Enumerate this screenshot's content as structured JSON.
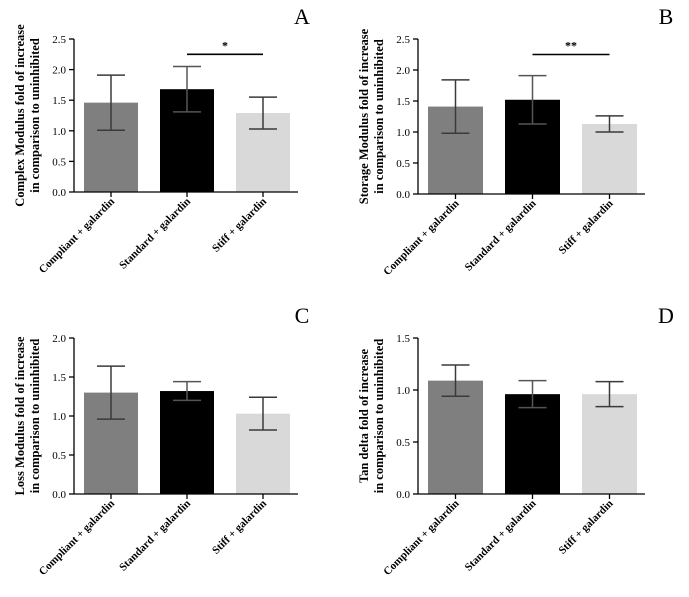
{
  "chart_data": [
    {
      "panel": "A",
      "type": "bar",
      "categories": [
        "Compliant + galardin",
        "Standard + galardin",
        "Stiff + galardin"
      ],
      "values": [
        1.46,
        1.68,
        1.29
      ],
      "errors": [
        0.45,
        0.37,
        0.26
      ],
      "colors": [
        "#7f7f7f",
        "#000000",
        "#d9d9d9"
      ],
      "ylabel_lines": [
        "Complex Modulus fold of increase",
        "in comparison to  uninhibited"
      ],
      "ylim": [
        0,
        2.5
      ],
      "yticks": [
        0,
        0.5,
        1.0,
        1.5,
        2.0,
        2.5
      ],
      "ytick_labels": [
        "0.0",
        "0.5",
        "1.0",
        "1.5",
        "2.0",
        "2.5"
      ],
      "significance": [
        {
          "from": 1,
          "to": 2,
          "label": "*",
          "y": 2.25
        }
      ]
    },
    {
      "panel": "B",
      "type": "bar",
      "categories": [
        "Compliant + galardin",
        "Standard + galardin",
        "Stiff + galardin"
      ],
      "values": [
        1.41,
        1.52,
        1.13
      ],
      "errors": [
        0.43,
        0.39,
        0.13
      ],
      "colors": [
        "#7f7f7f",
        "#000000",
        "#d9d9d9"
      ],
      "ylabel_lines": [
        "Storage Modulus  fold of increase",
        "in comparison to  uninhibited"
      ],
      "ylim": [
        0,
        2.5
      ],
      "yticks": [
        0,
        0.5,
        1.0,
        1.5,
        2.0,
        2.5
      ],
      "ytick_labels": [
        "0.0",
        "0.5",
        "1.0",
        "1.5",
        "2.0",
        "2.5"
      ],
      "significance": [
        {
          "from": 1,
          "to": 2,
          "label": "**",
          "y": 2.25
        }
      ]
    },
    {
      "panel": "C",
      "type": "bar",
      "categories": [
        "Compliant + galardin",
        "Standard + galardin",
        "Stiff + galardin"
      ],
      "values": [
        1.3,
        1.32,
        1.03
      ],
      "errors": [
        0.34,
        0.12,
        0.21
      ],
      "colors": [
        "#7f7f7f",
        "#000000",
        "#d9d9d9"
      ],
      "ylabel_lines": [
        "Loss Modulus fold of increase",
        "in comparison to uninhibited"
      ],
      "ylim": [
        0,
        2.0
      ],
      "yticks": [
        0,
        0.5,
        1.0,
        1.5,
        2.0
      ],
      "ytick_labels": [
        "0.0",
        "0.5",
        "1.0",
        "1.5",
        "2.0"
      ],
      "significance": []
    },
    {
      "panel": "D",
      "type": "bar",
      "categories": [
        "Compliant + galardin",
        "Standard + galardin",
        "Stiff + galardin"
      ],
      "values": [
        1.09,
        0.96,
        0.96
      ],
      "errors": [
        0.15,
        0.13,
        0.12
      ],
      "colors": [
        "#7f7f7f",
        "#000000",
        "#d9d9d9"
      ],
      "ylabel_lines": [
        "Tan delta  fold of increase",
        "in comparison to uninhibited"
      ],
      "ylim": [
        0,
        1.5
      ],
      "yticks": [
        0,
        0.5,
        1.0,
        1.5
      ],
      "ytick_labels": [
        "0.0",
        "0.5",
        "1.0",
        "1.5"
      ],
      "significance": []
    }
  ]
}
